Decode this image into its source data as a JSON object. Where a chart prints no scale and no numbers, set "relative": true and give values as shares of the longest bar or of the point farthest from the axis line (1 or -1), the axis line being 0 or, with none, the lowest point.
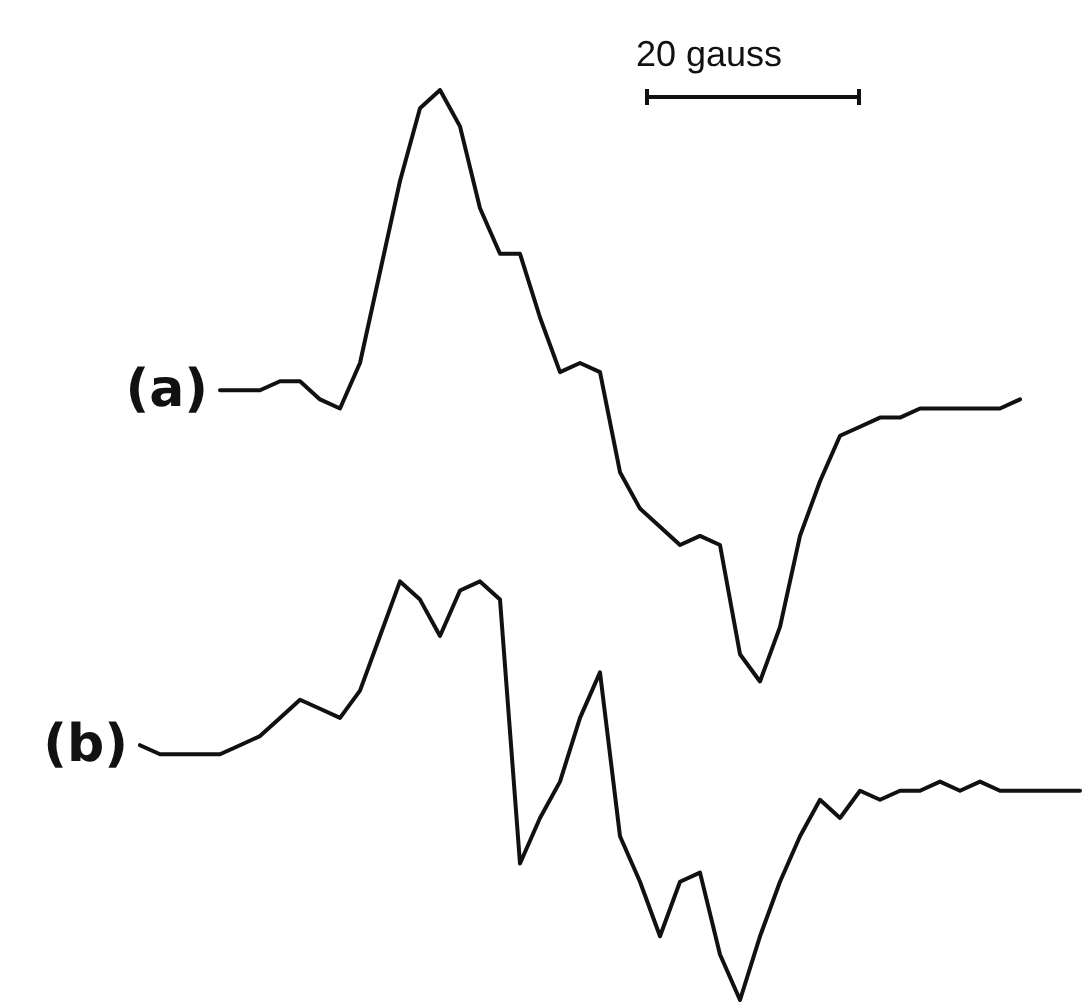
{
  "chart_data": {
    "type": "line",
    "relative": true,
    "line_style": "solid",
    "categories": [
      null,
      null,
      null,
      null,
      null,
      null,
      null,
      null,
      null,
      null,
      null,
      null,
      null,
      null,
      null,
      null,
      null,
      null,
      null,
      null,
      null,
      null,
      null,
      null,
      null,
      null,
      null,
      null,
      null,
      null,
      null,
      null,
      null,
      null,
      null,
      null,
      null,
      null,
      null,
      null,
      null,
      null,
      null,
      null,
      null,
      null,
      null,
      null
    ],
    "series": [
      {
        "name": "(a)",
        "color": "#111111",
        "values": [
          null,
          null,
          null,
          null,
          0.67,
          0.67,
          0.67,
          0.68,
          0.68,
          0.66,
          0.65,
          0.7,
          0.8,
          0.9,
          0.98,
          1,
          0.96,
          0.87,
          0.82,
          0.82,
          0.75,
          0.69,
          0.7,
          0.69,
          0.58,
          0.54,
          0.52,
          0.5,
          0.51,
          0.5,
          0.38,
          0.35,
          0.41,
          0.51,
          0.57,
          0.62,
          0.63,
          0.64,
          0.64,
          0.65,
          0.65,
          0.65,
          0.65,
          0.65,
          0.66,
          null,
          null,
          null
        ]
      },
      {
        "name": "(b)",
        "color": "#111111",
        "values": [
          0.28,
          0.27,
          0.27,
          0.27,
          0.27,
          0.28,
          0.29,
          0.31,
          0.33,
          0.32,
          0.31,
          0.34,
          0.4,
          0.46,
          0.44,
          0.4,
          0.45,
          0.46,
          0.44,
          0.15,
          0.2,
          0.24,
          0.31,
          0.36,
          0.18,
          0.13,
          0.07,
          0.13,
          0.14,
          0.05,
          0,
          0.07,
          0.13,
          0.18,
          0.22,
          0.2,
          0.23,
          0.22,
          0.23,
          0.23,
          0.24,
          0.23,
          0.24,
          0.23,
          0.23,
          0.23,
          0.23,
          0.23
        ]
      }
    ],
    "annotations": [
      "20 gauss"
    ]
  }
}
